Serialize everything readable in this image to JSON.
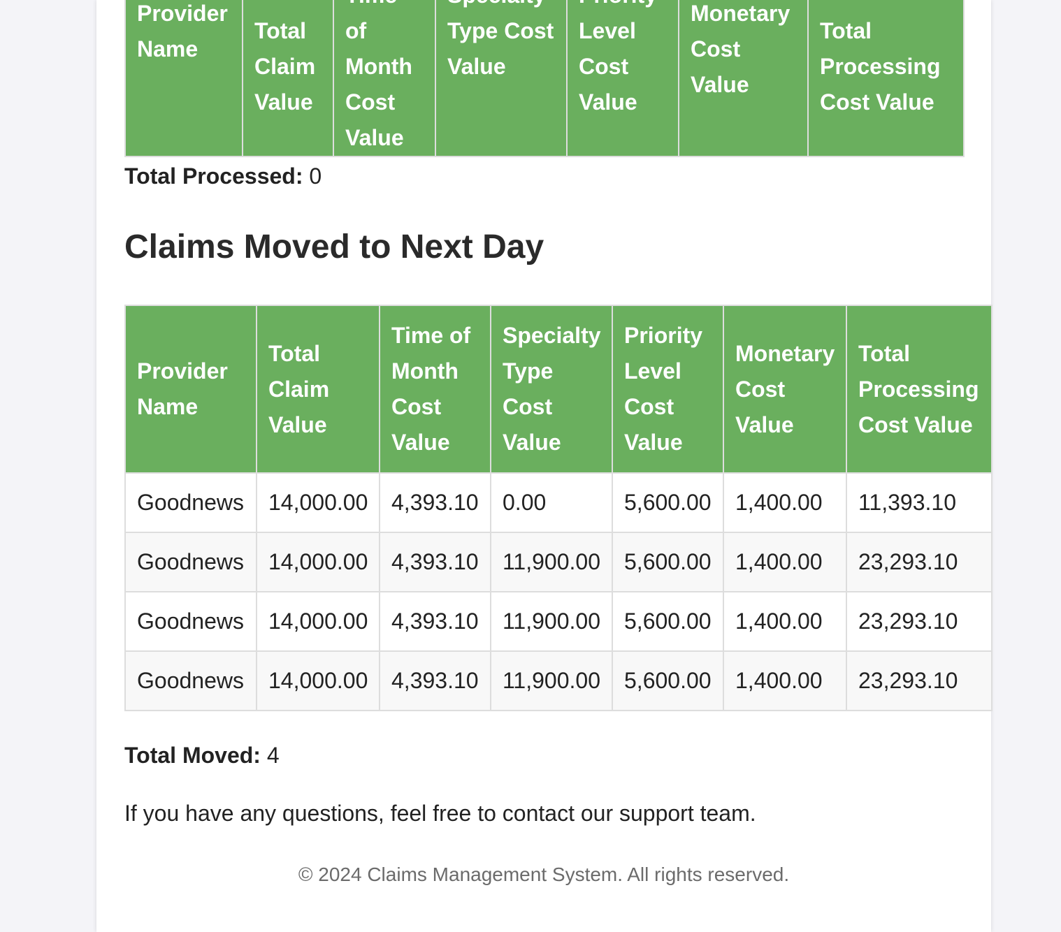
{
  "processed_table": {
    "headers": [
      "Provider Name",
      "Total Claim Value",
      "Time of Month Cost Value",
      "Specialty Type Cost Value",
      "Priority Level Cost Value",
      "Monetary Cost Value",
      "Total Processing Cost Value"
    ]
  },
  "total_processed": {
    "label": "Total Processed:",
    "value": "0"
  },
  "moved_section": {
    "title": "Claims Moved to Next Day"
  },
  "moved_table": {
    "headers": [
      "Provider Name",
      "Total Claim Value",
      "Time of Month Cost Value",
      "Specialty Type Cost Value",
      "Priority Level Cost Value",
      "Monetary Cost Value",
      "Total Processing Cost Value"
    ],
    "rows": [
      [
        "Goodnews",
        "14,000.00",
        "4,393.10",
        "0.00",
        "5,600.00",
        "1,400.00",
        "11,393.10"
      ],
      [
        "Goodnews",
        "14,000.00",
        "4,393.10",
        "11,900.00",
        "5,600.00",
        "1,400.00",
        "23,293.10"
      ],
      [
        "Goodnews",
        "14,000.00",
        "4,393.10",
        "11,900.00",
        "5,600.00",
        "1,400.00",
        "23,293.10"
      ],
      [
        "Goodnews",
        "14,000.00",
        "4,393.10",
        "11,900.00",
        "5,600.00",
        "1,400.00",
        "23,293.10"
      ]
    ]
  },
  "total_moved": {
    "label": "Total Moved:",
    "value": "4"
  },
  "contact_note": "If you have any questions, feel free to contact our support team.",
  "footer": "© 2024 Claims Management System. All rights reserved.",
  "colors": {
    "header_green": "#6aaf5e",
    "background": "#f4f4f8",
    "card": "#ffffff"
  }
}
